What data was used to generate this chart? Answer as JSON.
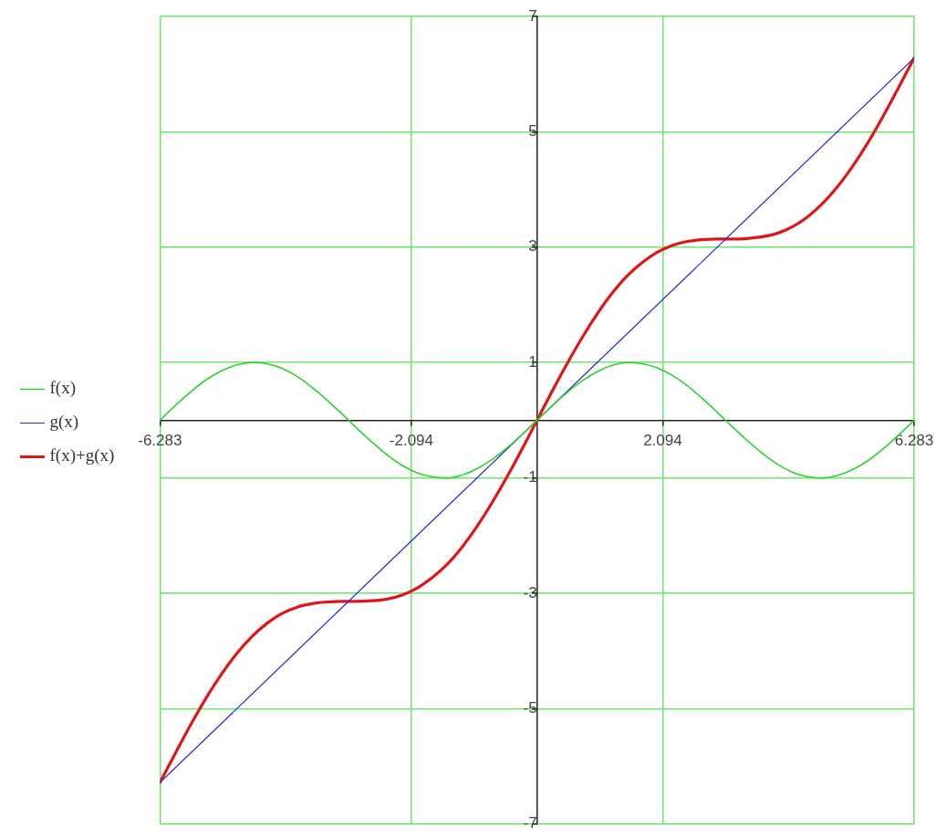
{
  "chart_data": {
    "type": "line",
    "xlim": [
      -6.283,
      6.283
    ],
    "xticks": [
      -6.283,
      -2.094,
      2.094,
      6.283
    ],
    "ylim": [
      -7,
      7
    ],
    "yticks": [
      -7,
      -5,
      -3,
      -1,
      1,
      3,
      5,
      7
    ],
    "grid": true,
    "legend": "left",
    "series": [
      {
        "name": "f(x)",
        "color": "#2ed12e",
        "x": [
          -6.283,
          -6,
          -5.75,
          -5.5,
          -5.25,
          -5,
          -4.75,
          -4.5,
          -4.25,
          -4,
          -3.75,
          -3.5,
          -3.25,
          -3,
          -2.75,
          -2.5,
          -2.25,
          -2,
          -1.75,
          -1.5,
          -1.25,
          -1,
          -0.75,
          -0.5,
          -0.25,
          0,
          0.25,
          0.5,
          0.75,
          1,
          1.25,
          1.5,
          1.75,
          2,
          2.25,
          2.5,
          2.75,
          3,
          3.25,
          3.5,
          3.75,
          4,
          4.25,
          4.5,
          4.75,
          5,
          5.25,
          5.5,
          5.75,
          6,
          6.283
        ],
        "values": [
          0,
          0.28,
          0.51,
          0.71,
          0.86,
          0.96,
          1.0,
          0.98,
          0.9,
          0.76,
          0.57,
          0.35,
          0.11,
          -0.14,
          -0.38,
          -0.6,
          -0.78,
          -0.91,
          -0.98,
          -1.0,
          -0.95,
          -0.84,
          -0.68,
          -0.48,
          -0.25,
          0,
          0.25,
          0.48,
          0.68,
          0.84,
          0.95,
          1.0,
          0.98,
          0.91,
          0.78,
          0.6,
          0.38,
          0.14,
          -0.11,
          -0.35,
          -0.57,
          -0.76,
          -0.9,
          -0.98,
          -1.0,
          -0.96,
          -0.86,
          -0.71,
          -0.51,
          -0.28,
          0
        ]
      },
      {
        "name": "g(x)",
        "color": "#2525e0",
        "x": [
          -6.283,
          6.283
        ],
        "values": [
          -6.28,
          6.28
        ]
      },
      {
        "name": "f(x)+g(x)",
        "color": "#e01515",
        "x": [
          -6.283,
          -6,
          -5.75,
          -5.5,
          -5.25,
          -5,
          -4.75,
          -4.5,
          -4.25,
          -4,
          -3.75,
          -3.5,
          -3.25,
          -3,
          -2.75,
          -2.5,
          -2.25,
          -2,
          -1.75,
          -1.5,
          -1.25,
          -1,
          -0.75,
          -0.5,
          -0.25,
          0,
          0.25,
          0.5,
          0.75,
          1,
          1.25,
          1.5,
          1.75,
          2,
          2.25,
          2.5,
          2.75,
          3,
          3.25,
          3.5,
          3.75,
          4,
          4.25,
          4.5,
          4.75,
          5,
          5.25,
          5.5,
          5.75,
          6,
          6.283
        ],
        "values": [
          -6.28,
          -5.72,
          -5.24,
          -4.79,
          -4.39,
          -4.04,
          -3.75,
          -3.52,
          -3.35,
          -3.24,
          -3.18,
          -3.15,
          -3.14,
          -3.14,
          -3.13,
          -3.1,
          -3.03,
          -2.91,
          -2.73,
          -2.5,
          -2.2,
          -1.84,
          -1.43,
          -0.98,
          -0.5,
          0,
          0.5,
          0.98,
          1.43,
          1.84,
          2.2,
          2.5,
          2.73,
          2.91,
          3.03,
          3.1,
          3.13,
          3.14,
          3.14,
          3.15,
          3.18,
          3.24,
          3.35,
          3.52,
          3.75,
          4.04,
          4.39,
          4.79,
          5.24,
          5.72,
          6.28
        ]
      }
    ]
  }
}
